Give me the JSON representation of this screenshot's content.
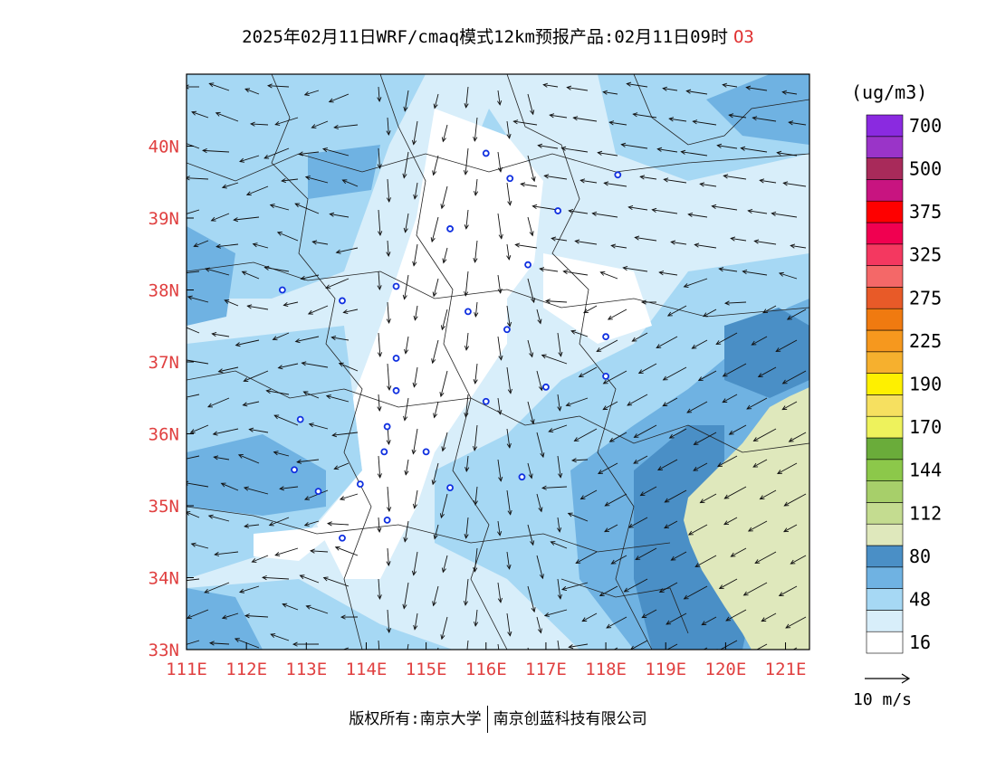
{
  "title": {
    "text": "2025年02月11日WRF/cmaq模式12km预报产品:02月11日09时",
    "field": "O3"
  },
  "map": {
    "x_ticks": [
      "111E",
      "112E",
      "113E",
      "114E",
      "115E",
      "116E",
      "117E",
      "118E",
      "119E",
      "120E",
      "121E"
    ],
    "y_ticks": [
      "33N",
      "34N",
      "35N",
      "36N",
      "37N",
      "38N",
      "39N",
      "40N"
    ],
    "lon_range": [
      111,
      121.4
    ],
    "lat_range": [
      33,
      41
    ]
  },
  "legend": {
    "unit": "(ug/m3)",
    "colors": [
      "#ffffff",
      "#d8eefa",
      "#a6d8f4",
      "#6fb2e2",
      "#4a8fc6",
      "#dfe8bc",
      "#c4dc90",
      "#a7cf6a",
      "#8cc84a",
      "#6aac3a",
      "#eef25c",
      "#f6e060",
      "#fef000",
      "#f6b02e",
      "#f6981e",
      "#f07a10",
      "#e85a28",
      "#f46868",
      "#f43860",
      "#f00050",
      "#fe0000",
      "#c81480",
      "#a82a5a",
      "#9a34c8",
      "#8a2ae0"
    ],
    "labels": [
      "16",
      "48",
      "80",
      "112",
      "144",
      "170",
      "190",
      "225",
      "275",
      "325",
      "375",
      "500",
      "700"
    ],
    "label_slots": [
      1,
      3,
      5,
      7,
      9,
      11,
      13,
      15,
      17,
      19,
      21,
      23,
      25
    ]
  },
  "vector_ref": {
    "label": "10 m/s"
  },
  "cities": [
    [
      112.6,
      38.0
    ],
    [
      113.6,
      37.85
    ],
    [
      114.5,
      38.05
    ],
    [
      115.4,
      38.85
    ],
    [
      115.7,
      37.7
    ],
    [
      116.35,
      37.45
    ],
    [
      116.7,
      38.35
    ],
    [
      116.4,
      39.55
    ],
    [
      116.0,
      39.9
    ],
    [
      117.2,
      39.1
    ],
    [
      118.2,
      39.6
    ],
    [
      118.0,
      37.35
    ],
    [
      118.0,
      36.8
    ],
    [
      117.0,
      36.65
    ],
    [
      116.0,
      36.45
    ],
    [
      114.5,
      37.05
    ],
    [
      114.5,
      36.6
    ],
    [
      114.35,
      36.1
    ],
    [
      114.3,
      35.75
    ],
    [
      115.0,
      35.75
    ],
    [
      112.9,
      36.2
    ],
    [
      112.8,
      35.5
    ],
    [
      113.2,
      35.2
    ],
    [
      113.9,
      35.3
    ],
    [
      115.4,
      35.25
    ],
    [
      116.6,
      35.4
    ],
    [
      114.35,
      34.8
    ],
    [
      113.6,
      34.55
    ]
  ],
  "copyright": {
    "left": "版权所有:南京大学",
    "right": "南京创蓝科技有限公司"
  }
}
